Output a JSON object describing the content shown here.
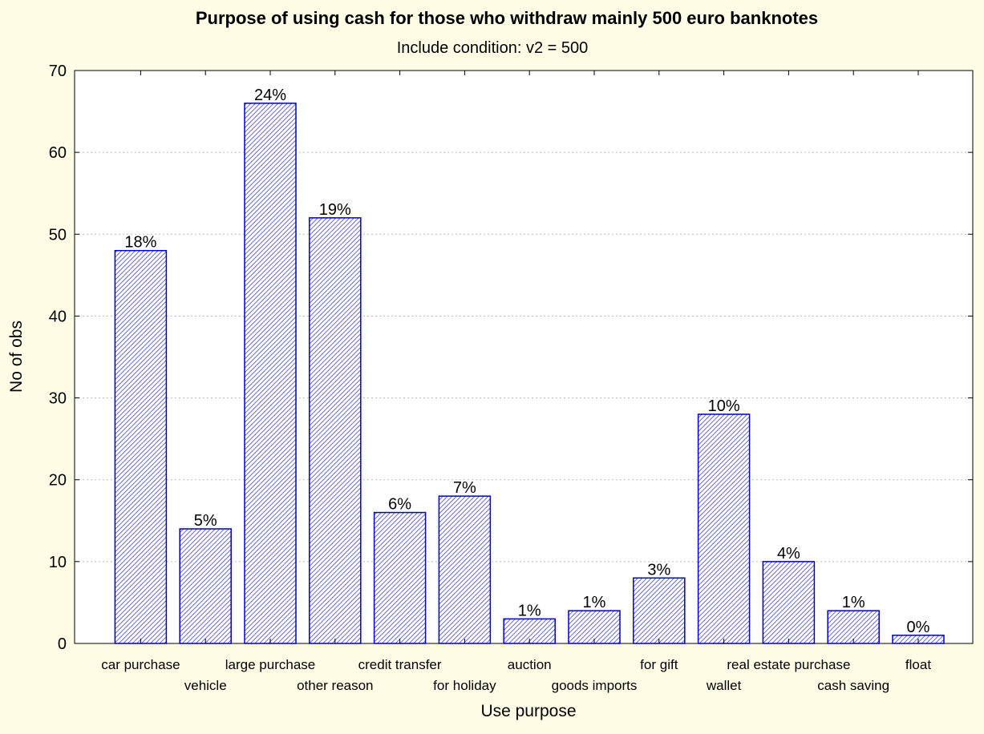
{
  "chart_data": {
    "type": "bar",
    "title": "Purpose of using cash for those who withdraw mainly 500 euro banknotes",
    "subtitle": "Include condition: v2 = 500",
    "xlabel": "Use purpose",
    "ylabel": "No of obs",
    "ylim": [
      0,
      70
    ],
    "yticks": [
      0,
      10,
      20,
      30,
      40,
      50,
      60,
      70
    ],
    "grid": true,
    "categories": [
      "car purchase",
      "vehicle",
      "large purchase",
      "other reason",
      "credit transfer",
      "for holiday",
      "auction",
      "goods imports",
      "for gift",
      "wallet",
      "real estate purchase",
      "cash saving",
      "float"
    ],
    "values": [
      48,
      14,
      66,
      52,
      16,
      18,
      3,
      4,
      8,
      28,
      10,
      4,
      1
    ],
    "data_labels": [
      "18%",
      "5%",
      "24%",
      "19%",
      "6%",
      "7%",
      "1%",
      "1%",
      "3%",
      "10%",
      "4%",
      "1%",
      "0%"
    ],
    "bar_fill": "#d6d6f0",
    "bar_stroke": "#0000cc",
    "background": "#fffde6",
    "plot_background": "#ffffff"
  }
}
